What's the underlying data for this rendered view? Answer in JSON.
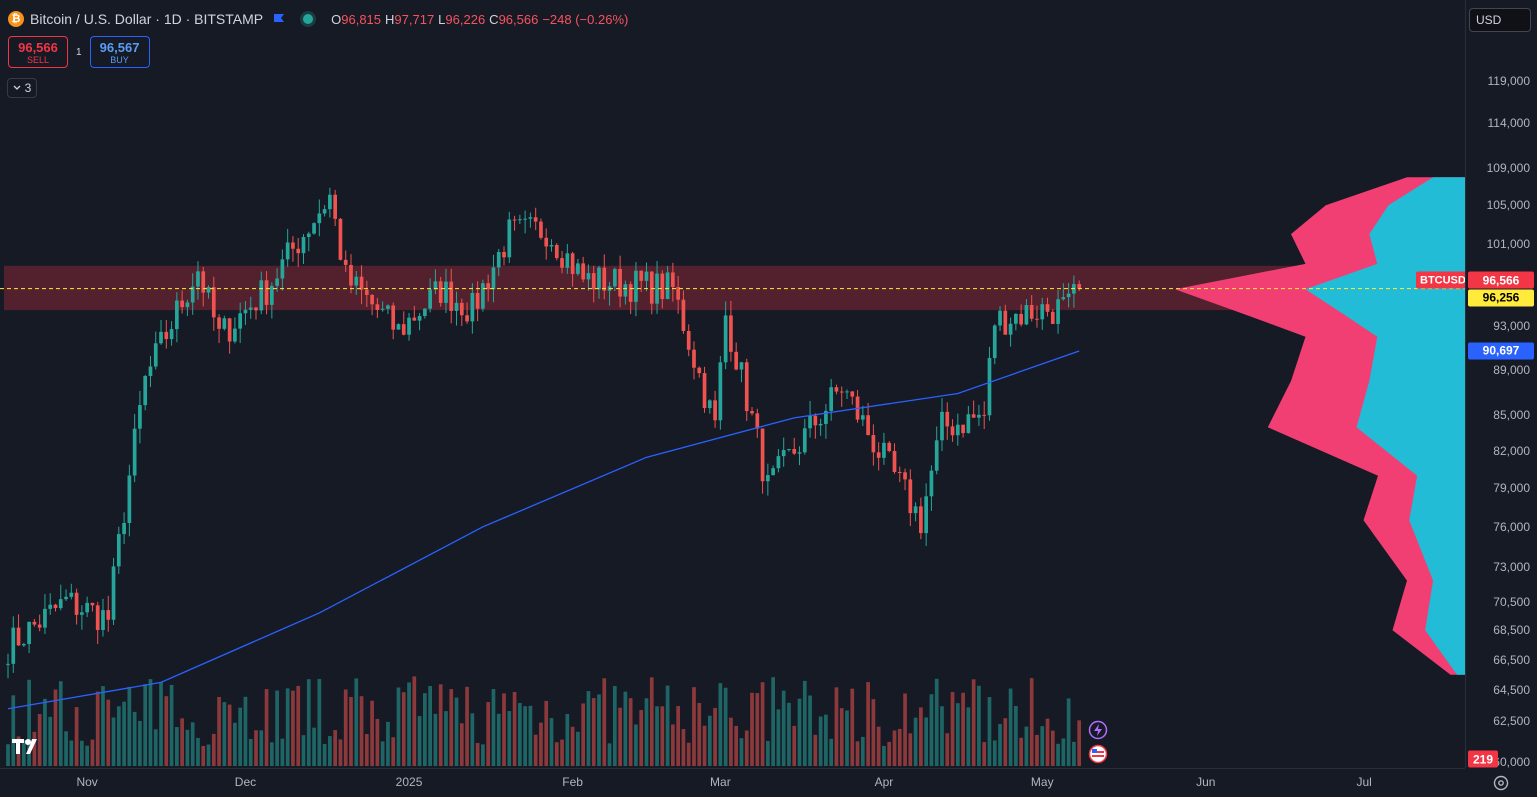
{
  "header": {
    "logo_letter": "₿",
    "symbol_title": "Bitcoin / U.S. Dollar · 1D · BITSTAMP",
    "ohlc": [
      {
        "label": "O",
        "value": "96,815"
      },
      {
        "label": "H",
        "value": "97,717"
      },
      {
        "label": "L",
        "value": "96,226"
      },
      {
        "label": "C",
        "value": "96,566"
      }
    ],
    "change": "−248 (−0.26%)",
    "icons": [
      "flag-icon",
      "market-status-dot-icon"
    ]
  },
  "trade": {
    "sell_price": "96,566",
    "sell_label": "SELL",
    "spread": "1",
    "buy_price": "96,567",
    "buy_label": "BUY"
  },
  "indicators_toggle": {
    "count": "3",
    "icon": "chevron-down-icon"
  },
  "currency": "USD",
  "price_axis": {
    "ticks": [
      {
        "label": "119,000",
        "price": 119000
      },
      {
        "label": "114,000",
        "price": 114000
      },
      {
        "label": "109,000",
        "price": 109000
      },
      {
        "label": "105,000",
        "price": 105000
      },
      {
        "label": "101,000",
        "price": 101000
      },
      {
        "label": "93,000",
        "price": 93000
      },
      {
        "label": "89,000",
        "price": 89000
      },
      {
        "label": "85,000",
        "price": 85000
      },
      {
        "label": "82,000",
        "price": 82000
      },
      {
        "label": "79,000",
        "price": 79000
      },
      {
        "label": "76,000",
        "price": 76000
      },
      {
        "label": "73,000",
        "price": 73000
      },
      {
        "label": "70,500",
        "price": 70500
      },
      {
        "label": "68,500",
        "price": 68500
      },
      {
        "label": "66,500",
        "price": 66500
      },
      {
        "label": "64,500",
        "price": 64500
      },
      {
        "label": "62,500",
        "price": 62500
      },
      {
        "label": "60,000",
        "price": 60000
      }
    ],
    "labels": {
      "symbol": "BTCUSD",
      "last": "96,566",
      "poc": "96,256",
      "ma": "90,697",
      "volume": "219"
    },
    "colors": {
      "last": "#f23645",
      "poc": "#ffeb3b",
      "ma": "#2962ff",
      "volume": "#f23645"
    }
  },
  "time_axis": {
    "months": [
      "Nov",
      "Dec",
      "2025",
      "Feb",
      "Mar",
      "Apr",
      "May",
      "Jun",
      "Jul"
    ]
  },
  "chart_data": {
    "type": "candlestick",
    "symbol": "BTCUSD",
    "interval": "1D",
    "exchange": "BITSTAMP",
    "x_range": [
      "2024-10-17",
      "2025-07-15"
    ],
    "y_range": [
      60000,
      122000
    ],
    "value_area": {
      "low": 94500,
      "high": 98800
    },
    "last_close": 96566,
    "poc_price": 96256,
    "anchors": [
      {
        "date": "2024-10-17",
        "close": 67400
      },
      {
        "date": "2024-10-28",
        "close": 70500
      },
      {
        "date": "2024-11-05",
        "close": 69300
      },
      {
        "date": "2024-11-12",
        "close": 88000
      },
      {
        "date": "2024-11-22",
        "close": 98500
      },
      {
        "date": "2024-11-26",
        "close": 92000
      },
      {
        "date": "2024-12-05",
        "close": 96500
      },
      {
        "date": "2024-12-17",
        "close": 106000
      },
      {
        "date": "2024-12-20",
        "close": 97500
      },
      {
        "date": "2024-12-30",
        "close": 92500
      },
      {
        "date": "2025-01-07",
        "close": 96500
      },
      {
        "date": "2025-01-13",
        "close": 94500
      },
      {
        "date": "2025-01-20",
        "close": 102000
      },
      {
        "date": "2025-01-27",
        "close": 102500
      },
      {
        "date": "2025-02-03",
        "close": 97500
      },
      {
        "date": "2025-02-20",
        "close": 96500
      },
      {
        "date": "2025-02-25",
        "close": 88500
      },
      {
        "date": "2025-02-28",
        "close": 84000
      },
      {
        "date": "2025-03-02",
        "close": 94000
      },
      {
        "date": "2025-03-10",
        "close": 79000
      },
      {
        "date": "2025-03-24",
        "close": 87500
      },
      {
        "date": "2025-03-31",
        "close": 82000
      },
      {
        "date": "2025-04-08",
        "close": 76500
      },
      {
        "date": "2025-04-12",
        "close": 84000
      },
      {
        "date": "2025-04-20",
        "close": 85000
      },
      {
        "date": "2025-04-22",
        "close": 93500
      },
      {
        "date": "2025-04-30",
        "close": 94500
      },
      {
        "date": "2025-05-06",
        "close": 94700
      },
      {
        "date": "2025-05-08",
        "close": 96566
      }
    ],
    "moving_average": [
      {
        "date": "2024-10-17",
        "value": 63300
      },
      {
        "date": "2024-11-15",
        "value": 65000
      },
      {
        "date": "2024-12-15",
        "value": 69700
      },
      {
        "date": "2025-01-15",
        "value": 76000
      },
      {
        "date": "2025-02-15",
        "value": 81500
      },
      {
        "date": "2025-03-15",
        "value": 84800
      },
      {
        "date": "2025-04-15",
        "value": 86900
      },
      {
        "date": "2025-05-08",
        "value": 90697
      }
    ],
    "volume_profile": [
      {
        "price": 108000,
        "volume": 0.2
      },
      {
        "price": 105000,
        "volume": 0.48
      },
      {
        "price": 102000,
        "volume": 0.6
      },
      {
        "price": 99000,
        "volume": 0.55
      },
      {
        "price": 96500,
        "volume": 1.0
      },
      {
        "price": 94000,
        "volume": 0.75
      },
      {
        "price": 92000,
        "volume": 0.55
      },
      {
        "price": 88000,
        "volume": 0.6
      },
      {
        "price": 84000,
        "volume": 0.68
      },
      {
        "price": 80000,
        "volume": 0.3
      },
      {
        "price": 76500,
        "volume": 0.35
      },
      {
        "price": 72000,
        "volume": 0.2
      },
      {
        "price": 68500,
        "volume": 0.25
      },
      {
        "price": 65500,
        "volume": 0.05
      }
    ],
    "colors": {
      "up": "#26a69a",
      "down": "#ef5350",
      "ma": "#2962ff",
      "profile_up": "#22bcd6",
      "profile_down": "#f23f73",
      "value_area": "#f23645"
    }
  }
}
